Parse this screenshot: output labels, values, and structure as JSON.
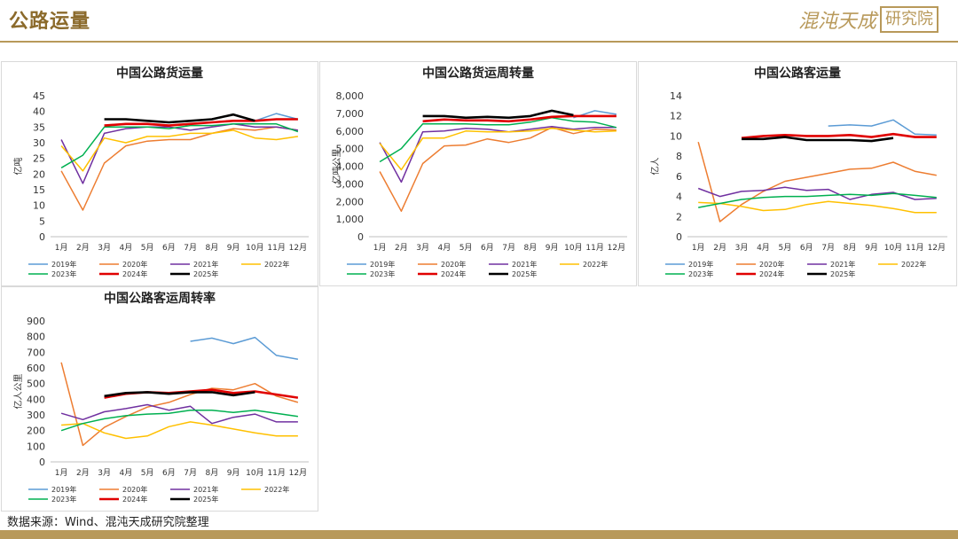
{
  "header": {
    "title": "公路运量",
    "logo_text": "混沌天成",
    "logo_box": "研究院"
  },
  "footer": {
    "source": "数据来源：Wind、混沌天成研究院整理"
  },
  "colors": {
    "2019年": "#5b9bd5",
    "2020年": "#ed7d31",
    "2021年": "#7030a0",
    "2022年": "#ffc000",
    "2023年": "#00b050",
    "2024年": "#e00000",
    "2025年": "#000000",
    "accent": "#b8995a"
  },
  "chart_data": [
    {
      "type": "line",
      "title": "中国公路货运量",
      "ylabel": "亿吨",
      "ylim": [
        0,
        45
      ],
      "yticks": [
        "0",
        "5",
        "10",
        "15",
        "20",
        "25",
        "30",
        "35",
        "40",
        "45"
      ],
      "categories": [
        "1月",
        "2月",
        "3月",
        "4月",
        "5月",
        "6月",
        "7月",
        "8月",
        "9月",
        "10月",
        "11月",
        "12月"
      ],
      "legend": "bottom",
      "series": [
        {
          "name": "2019年",
          "values": [
            null,
            null,
            null,
            null,
            null,
            null,
            null,
            null,
            null,
            37,
            39.3,
            37.5
          ]
        },
        {
          "name": "2020年",
          "values": [
            21,
            8.5,
            23.5,
            29,
            30.5,
            31,
            31,
            33,
            34.5,
            34,
            35,
            34
          ]
        },
        {
          "name": "2021年",
          "values": [
            31,
            17,
            33,
            34.5,
            35,
            35,
            34,
            35,
            36,
            35,
            35,
            34
          ]
        },
        {
          "name": "2022年",
          "values": [
            29,
            21,
            31.5,
            30,
            32,
            32,
            33,
            33,
            34,
            31.5,
            31,
            32
          ]
        },
        {
          "name": "2023年",
          "values": [
            22,
            26,
            35,
            35,
            35,
            34.5,
            35.5,
            35.5,
            36,
            36,
            36,
            33.5
          ]
        },
        {
          "name": "2024年",
          "values": [
            null,
            null,
            35.5,
            36,
            36,
            35.5,
            36,
            36.5,
            37,
            37,
            37.5,
            37.5
          ]
        },
        {
          "name": "2025年",
          "values": [
            null,
            null,
            37.5,
            37.5,
            37,
            36.5,
            37,
            37.5,
            39,
            37,
            null,
            null
          ]
        }
      ]
    },
    {
      "type": "line",
      "title": "中国公路货运周转量",
      "ylabel": "亿吨公里",
      "ylim": [
        0,
        8000
      ],
      "yticks": [
        "0",
        "1,000",
        "2,000",
        "3,000",
        "4,000",
        "5,000",
        "6,000",
        "7,000",
        "8,000"
      ],
      "categories": [
        "1月",
        "2月",
        "3月",
        "4月",
        "5月",
        "6月",
        "7月",
        "8月",
        "9月",
        "10月",
        "11月",
        "12月"
      ],
      "legend": "bottom",
      "series": [
        {
          "name": "2019年",
          "values": [
            null,
            null,
            null,
            null,
            null,
            null,
            null,
            null,
            null,
            6750,
            7150,
            6950
          ]
        },
        {
          "name": "2020年",
          "values": [
            3700,
            1450,
            4150,
            5150,
            5200,
            5550,
            5350,
            5600,
            6200,
            5850,
            6100,
            6050
          ]
        },
        {
          "name": "2021年",
          "values": [
            5350,
            3100,
            5950,
            6000,
            6150,
            6100,
            5950,
            6100,
            6250,
            6100,
            6200,
            6200
          ]
        },
        {
          "name": "2022年",
          "values": [
            5300,
            3800,
            5600,
            5600,
            6000,
            5950,
            5950,
            6000,
            6150,
            6050,
            5950,
            6000
          ]
        },
        {
          "name": "2023年",
          "values": [
            4250,
            5000,
            6400,
            6400,
            6400,
            6350,
            6350,
            6500,
            6750,
            6550,
            6500,
            6200
          ]
        },
        {
          "name": "2024年",
          "values": [
            null,
            null,
            6550,
            6650,
            6600,
            6600,
            6550,
            6650,
            6800,
            6850,
            6850,
            6850
          ]
        },
        {
          "name": "2025年",
          "values": [
            null,
            null,
            6850,
            6850,
            6750,
            6800,
            6750,
            6850,
            7150,
            6900,
            null,
            null
          ]
        }
      ]
    },
    {
      "type": "line",
      "title": "中国公路客运量",
      "ylabel": "亿人",
      "ylim": [
        0,
        14
      ],
      "yticks": [
        "0",
        "2",
        "4",
        "6",
        "8",
        "10",
        "12",
        "14"
      ],
      "categories": [
        "1月",
        "2月",
        "3月",
        "4月",
        "5月",
        "6月",
        "7月",
        "8月",
        "9月",
        "10月",
        "11月",
        "12月"
      ],
      "legend": "bottom",
      "series": [
        {
          "name": "2019年",
          "values": [
            null,
            null,
            null,
            null,
            null,
            null,
            11,
            11.1,
            11,
            11.6,
            10.2,
            10.1
          ]
        },
        {
          "name": "2020年",
          "values": [
            9.4,
            1.5,
            3.2,
            4.5,
            5.5,
            5.9,
            6.3,
            6.7,
            6.8,
            7.4,
            6.5,
            6.1
          ]
        },
        {
          "name": "2021年",
          "values": [
            4.8,
            4,
            4.5,
            4.6,
            4.9,
            4.6,
            4.7,
            3.7,
            4.2,
            4.4,
            3.7,
            3.8
          ]
        },
        {
          "name": "2022年",
          "values": [
            3.4,
            3.3,
            3,
            2.6,
            2.7,
            3.2,
            3.5,
            3.3,
            3.1,
            2.8,
            2.4,
            2.4
          ]
        },
        {
          "name": "2023年",
          "values": [
            2.9,
            3.3,
            3.7,
            3.9,
            4,
            4,
            4.1,
            4.2,
            4.1,
            4.3,
            4.1,
            3.9
          ]
        },
        {
          "name": "2024年",
          "values": [
            null,
            null,
            9.8,
            10,
            10.1,
            10,
            10,
            10.1,
            9.9,
            10.2,
            9.9,
            9.9
          ]
        },
        {
          "name": "2025年",
          "values": [
            null,
            null,
            9.7,
            9.7,
            9.9,
            9.6,
            9.6,
            9.6,
            9.5,
            9.8,
            null,
            null
          ]
        }
      ]
    },
    {
      "type": "line",
      "title": "中国公路客运周转率",
      "ylabel": "亿人公里",
      "ylim": [
        0,
        900
      ],
      "yticks": [
        "0",
        "100",
        "200",
        "300",
        "400",
        "500",
        "600",
        "700",
        "800",
        "900"
      ],
      "categories": [
        "1月",
        "2月",
        "3月",
        "4月",
        "5月",
        "6月",
        "7月",
        "8月",
        "9月",
        "10月",
        "11月",
        "12月"
      ],
      "legend": "bottom",
      "series": [
        {
          "name": "2019年",
          "values": [
            null,
            null,
            null,
            null,
            null,
            null,
            770,
            790,
            755,
            795,
            680,
            655
          ]
        },
        {
          "name": "2020年",
          "values": [
            635,
            105,
            220,
            290,
            350,
            380,
            430,
            470,
            460,
            500,
            420,
            380
          ]
        },
        {
          "name": "2021年",
          "values": [
            310,
            270,
            320,
            340,
            365,
            330,
            355,
            245,
            285,
            305,
            255,
            255
          ]
        },
        {
          "name": "2022年",
          "values": [
            235,
            245,
            185,
            150,
            165,
            225,
            255,
            235,
            210,
            185,
            165,
            165
          ]
        },
        {
          "name": "2023年",
          "values": [
            200,
            245,
            275,
            295,
            305,
            310,
            330,
            330,
            315,
            330,
            310,
            290
          ]
        },
        {
          "name": "2024年",
          "values": [
            null,
            null,
            410,
            435,
            445,
            440,
            450,
            460,
            440,
            450,
            430,
            410
          ]
        },
        {
          "name": "2025年",
          "values": [
            null,
            null,
            420,
            440,
            445,
            435,
            445,
            445,
            425,
            445,
            null,
            null
          ]
        }
      ]
    }
  ]
}
